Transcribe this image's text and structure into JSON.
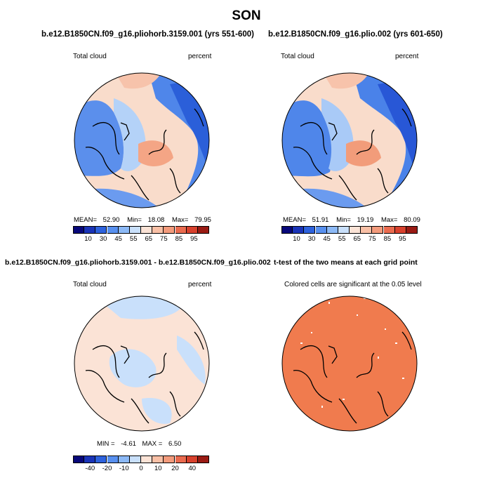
{
  "figure": {
    "season": "SON"
  },
  "panels": [
    {
      "id": "tl",
      "title": "b.e12.B1850CN.f09_g16.pliohorb.3159.001 (yrs 551-600)",
      "left_label": "Total cloud",
      "right_label": "percent",
      "stats": {
        "mean_label": "MEAN=",
        "mean": "52.90",
        "min_label": "Min=",
        "min": "18.08",
        "max_label": "Max=",
        "max": "79.95"
      },
      "colorbar": {
        "colors": [
          "#08087a",
          "#1a34b8",
          "#2e62dd",
          "#5890ef",
          "#8cb9f6",
          "#c9e0fb",
          "#fbe3d6",
          "#f9c0a6",
          "#f39b7c",
          "#ea6b4f",
          "#d8412d",
          "#9a1b14"
        ],
        "ticks": [
          "10",
          "30",
          "45",
          "55",
          "65",
          "75",
          "85",
          "95"
        ]
      }
    },
    {
      "id": "tr",
      "title": "b.e12.B1850CN.f09_g16.plio.002 (yrs 601-650)",
      "left_label": "Total cloud",
      "right_label": "percent",
      "stats": {
        "mean_label": "MEAN=",
        "mean": "51.91",
        "min_label": "Min=",
        "min": "19.19",
        "max_label": "Max=",
        "max": "80.09"
      },
      "colorbar": {
        "colors": [
          "#08087a",
          "#1a34b8",
          "#2e62dd",
          "#5890ef",
          "#8cb9f6",
          "#c9e0fb",
          "#fbe3d6",
          "#f9c0a6",
          "#f39b7c",
          "#ea6b4f",
          "#d8412d",
          "#9a1b14"
        ],
        "ticks": [
          "10",
          "30",
          "45",
          "55",
          "65",
          "75",
          "85",
          "95"
        ]
      }
    },
    {
      "id": "bl",
      "title": "b.e12.B1850CN.f09_g16.pliohorb.3159.001 - b.e12.B1850CN.f09_g16.plio.002",
      "left_label": "Total cloud",
      "right_label": "percent",
      "stats": {
        "min_label": "MIN =",
        "min": "-4.61",
        "max_label": "MAX =",
        "max": "6.50"
      },
      "colorbar": {
        "colors": [
          "#08087a",
          "#1a34b8",
          "#2e62dd",
          "#5890ef",
          "#8cb9f6",
          "#c9e0fb",
          "#fbe3d6",
          "#f9c0a6",
          "#f39b7c",
          "#ea6b4f",
          "#d8412d",
          "#9a1b14"
        ],
        "ticks": [
          "-40",
          "-20",
          "-10",
          "0",
          "10",
          "20",
          "40"
        ]
      }
    },
    {
      "id": "br",
      "title": "t-test of the two means at each grid point",
      "subtitle": "Colored cells are significant at the 0.05 level",
      "fill_color": "#f07b4e"
    }
  ]
}
